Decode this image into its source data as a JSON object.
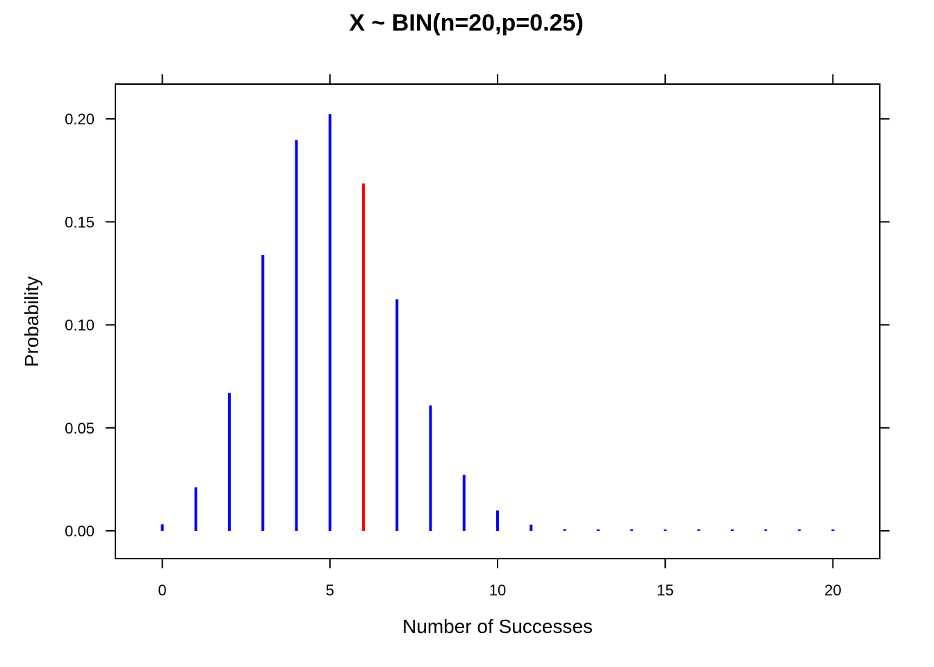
{
  "chart_data": {
    "type": "bar",
    "title": "X ~ BIN(n=20,p=0.25)",
    "xlabel": "Number of Successes",
    "ylabel": "Probability",
    "x": [
      0,
      1,
      2,
      3,
      4,
      5,
      6,
      7,
      8,
      9,
      10,
      11,
      12,
      13,
      14,
      15,
      16,
      17,
      18,
      19,
      20
    ],
    "values": [
      0.0032,
      0.0211,
      0.0669,
      0.1339,
      0.1897,
      0.2023,
      0.1686,
      0.1124,
      0.0609,
      0.0271,
      0.0099,
      0.003,
      0.0008,
      0.0002,
      3e-05,
      4e-06,
      5e-07,
      4e-08,
      3e-09,
      1e-10,
      1e-12
    ],
    "highlight_index": 6,
    "colors": {
      "bar": "#0000ff",
      "highlight": "#ff0000",
      "axis": "#000000"
    },
    "xlim": [
      -1.4,
      21.4
    ],
    "ylim": [
      -0.0135,
      0.2169
    ],
    "xticks": [
      0,
      5,
      10,
      15,
      20
    ],
    "xtick_labels": [
      "0",
      "5",
      "10",
      "15",
      "20"
    ],
    "yticks": [
      0.0,
      0.05,
      0.1,
      0.15,
      0.2
    ],
    "ytick_labels": [
      "0.00",
      "0.05",
      "0.10",
      "0.15",
      "0.20"
    ],
    "grid": false
  }
}
